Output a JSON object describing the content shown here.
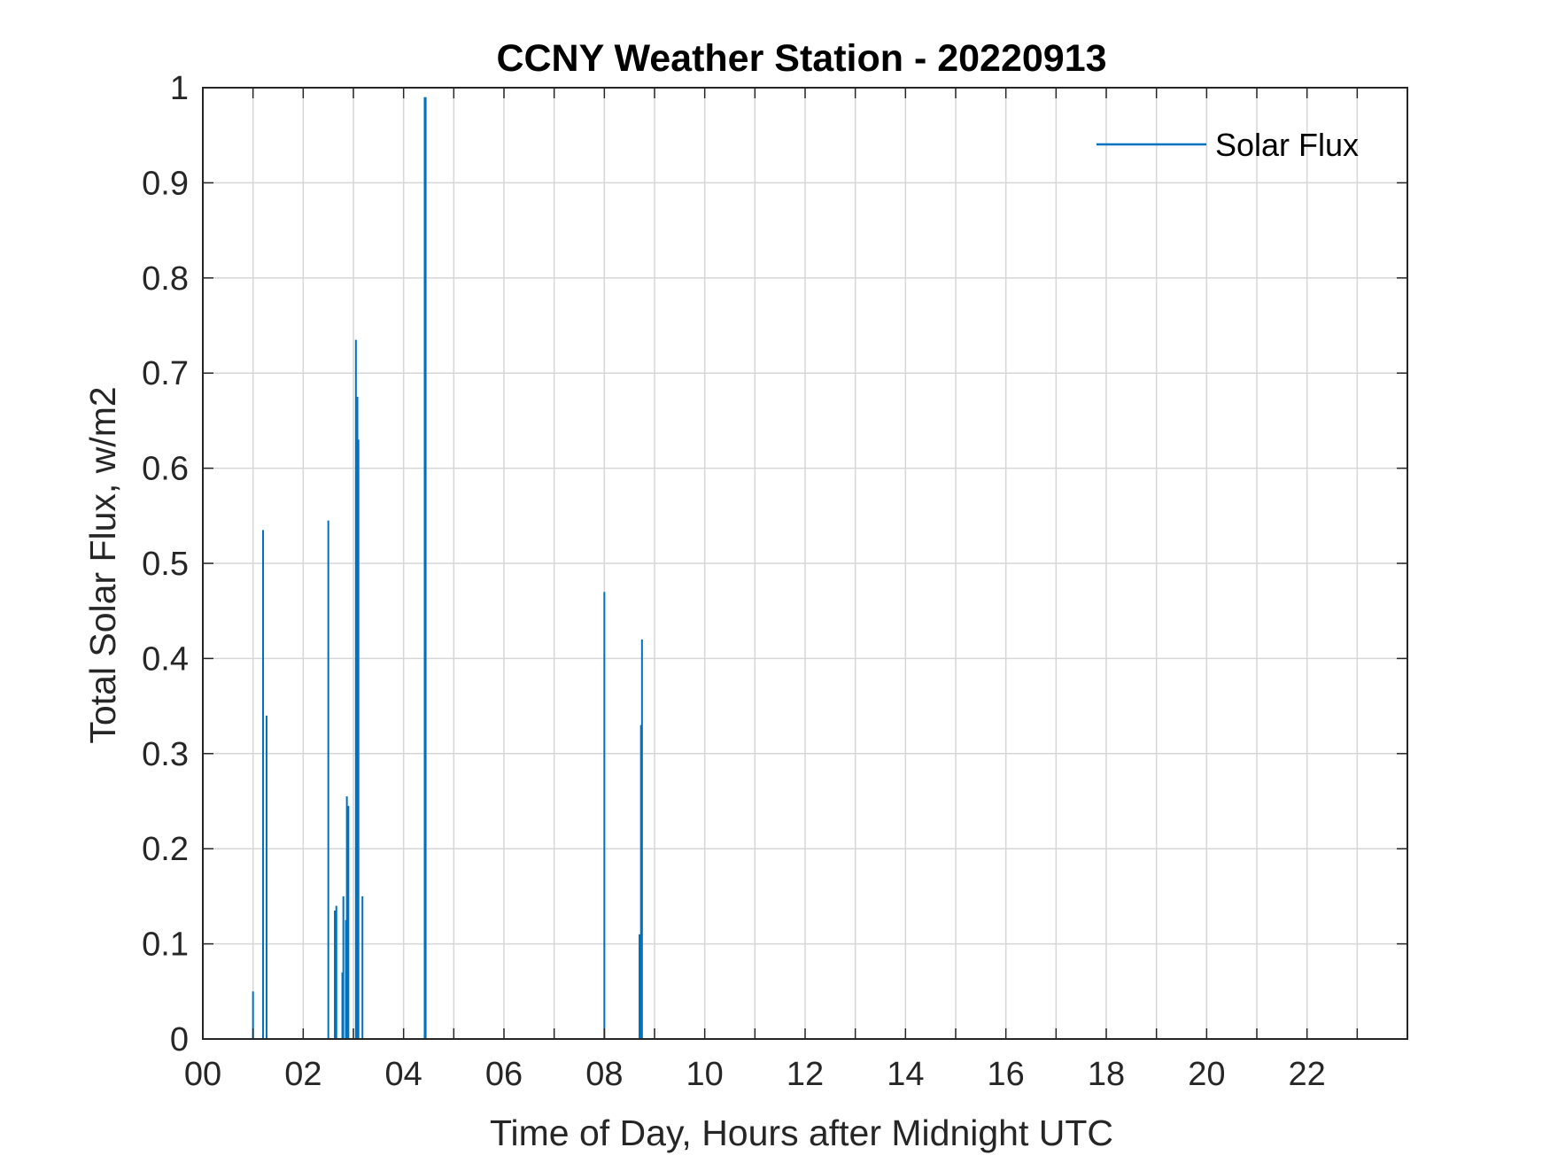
{
  "chart_data": {
    "type": "line",
    "title": "CCNY Weather Station - 20220913",
    "xlabel": "Time of Day, Hours after Midnight UTC",
    "ylabel": "Total Solar Flux, w/m2",
    "xlim": [
      0,
      24
    ],
    "ylim": [
      0,
      1
    ],
    "grid": true,
    "legend_position": "top-right",
    "x_tick_values": [
      0,
      2,
      4,
      6,
      8,
      10,
      12,
      14,
      16,
      18,
      20,
      22
    ],
    "x_tick_labels": [
      "00",
      "02",
      "04",
      "06",
      "08",
      "10",
      "12",
      "14",
      "16",
      "18",
      "20",
      "22"
    ],
    "x_minor_grid_step": 1,
    "y_tick_values": [
      0,
      0.1,
      0.2,
      0.3,
      0.4,
      0.5,
      0.6,
      0.7,
      0.8,
      0.9,
      1
    ],
    "y_tick_labels": [
      "0",
      "0.1",
      "0.2",
      "0.3",
      "0.4",
      "0.5",
      "0.6",
      "0.7",
      "0.8",
      "0.9",
      "1"
    ],
    "series": [
      {
        "name": "Solar Flux",
        "color": "#0072BD",
        "spikes": [
          {
            "x": 1.0,
            "y": 0.05
          },
          {
            "x": 1.2,
            "y": 0.535
          },
          {
            "x": 1.27,
            "y": 0.34
          },
          {
            "x": 2.5,
            "y": 0.545
          },
          {
            "x": 2.63,
            "y": 0.135
          },
          {
            "x": 2.66,
            "y": 0.14
          },
          {
            "x": 2.78,
            "y": 0.07
          },
          {
            "x": 2.8,
            "y": 0.15
          },
          {
            "x": 2.85,
            "y": 0.125
          },
          {
            "x": 2.87,
            "y": 0.255
          },
          {
            "x": 2.9,
            "y": 0.245
          },
          {
            "x": 3.05,
            "y": 0.735
          },
          {
            "x": 3.08,
            "y": 0.675
          },
          {
            "x": 3.1,
            "y": 0.63
          },
          {
            "x": 3.18,
            "y": 0.15
          },
          {
            "x": 4.42,
            "y": 0.99
          },
          {
            "x": 4.44,
            "y": 0.99
          },
          {
            "x": 8.0,
            "y": 0.47
          },
          {
            "x": 8.7,
            "y": 0.11
          },
          {
            "x": 8.73,
            "y": 0.33
          },
          {
            "x": 8.75,
            "y": 0.42
          }
        ]
      }
    ]
  }
}
